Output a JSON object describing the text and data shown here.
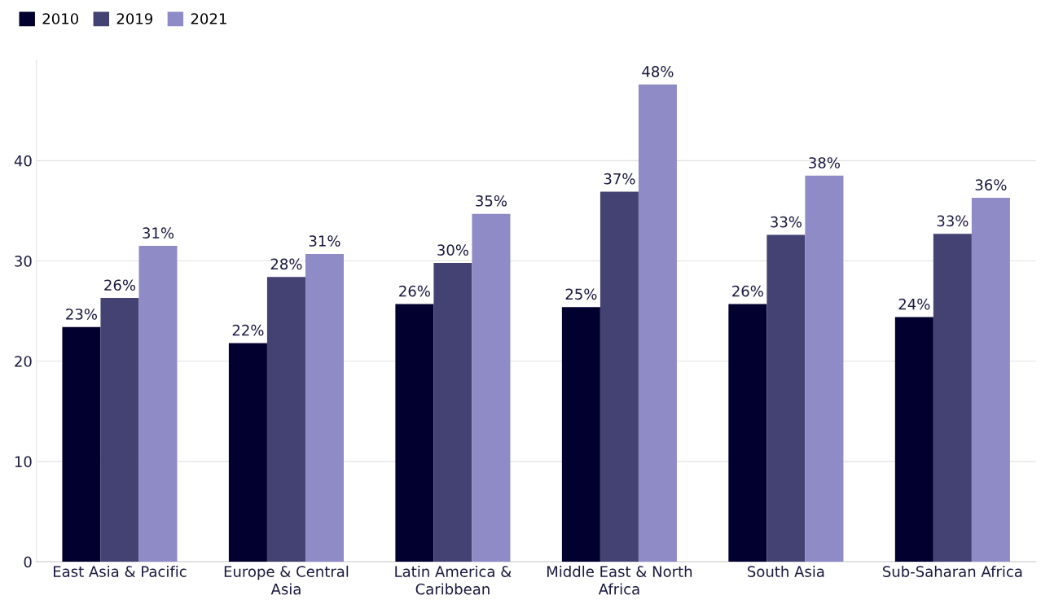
{
  "chart_data": {
    "type": "bar",
    "categories": [
      "East Asia & Pacific",
      "Europe & Central Asia",
      "Latin America & Caribbean",
      "Middle East & North Africa",
      "South Asia",
      "Sub-Saharan Africa"
    ],
    "series": [
      {
        "name": "2010",
        "color": "#02002f",
        "values": [
          23.4,
          21.8,
          25.7,
          25.4,
          25.7,
          24.4
        ],
        "value_labels": [
          "23%",
          "22%",
          "26%",
          "25%",
          "26%",
          "24%"
        ]
      },
      {
        "name": "2019",
        "color": "#444273",
        "values": [
          26.3,
          28.4,
          29.8,
          36.9,
          32.6,
          32.7
        ],
        "value_labels": [
          "26%",
          "28%",
          "30%",
          "37%",
          "33%",
          "33%"
        ]
      },
      {
        "name": "2021",
        "color": "#8f8bc6",
        "values": [
          31.5,
          30.7,
          34.7,
          47.6,
          38.5,
          36.3
        ],
        "value_labels": [
          "31%",
          "31%",
          "35%",
          "48%",
          "38%",
          "36%"
        ]
      }
    ],
    "ylim": [
      0,
      50
    ],
    "yticks": [
      0,
      10,
      20,
      30,
      40
    ],
    "grid": "y",
    "legend": "top left"
  }
}
